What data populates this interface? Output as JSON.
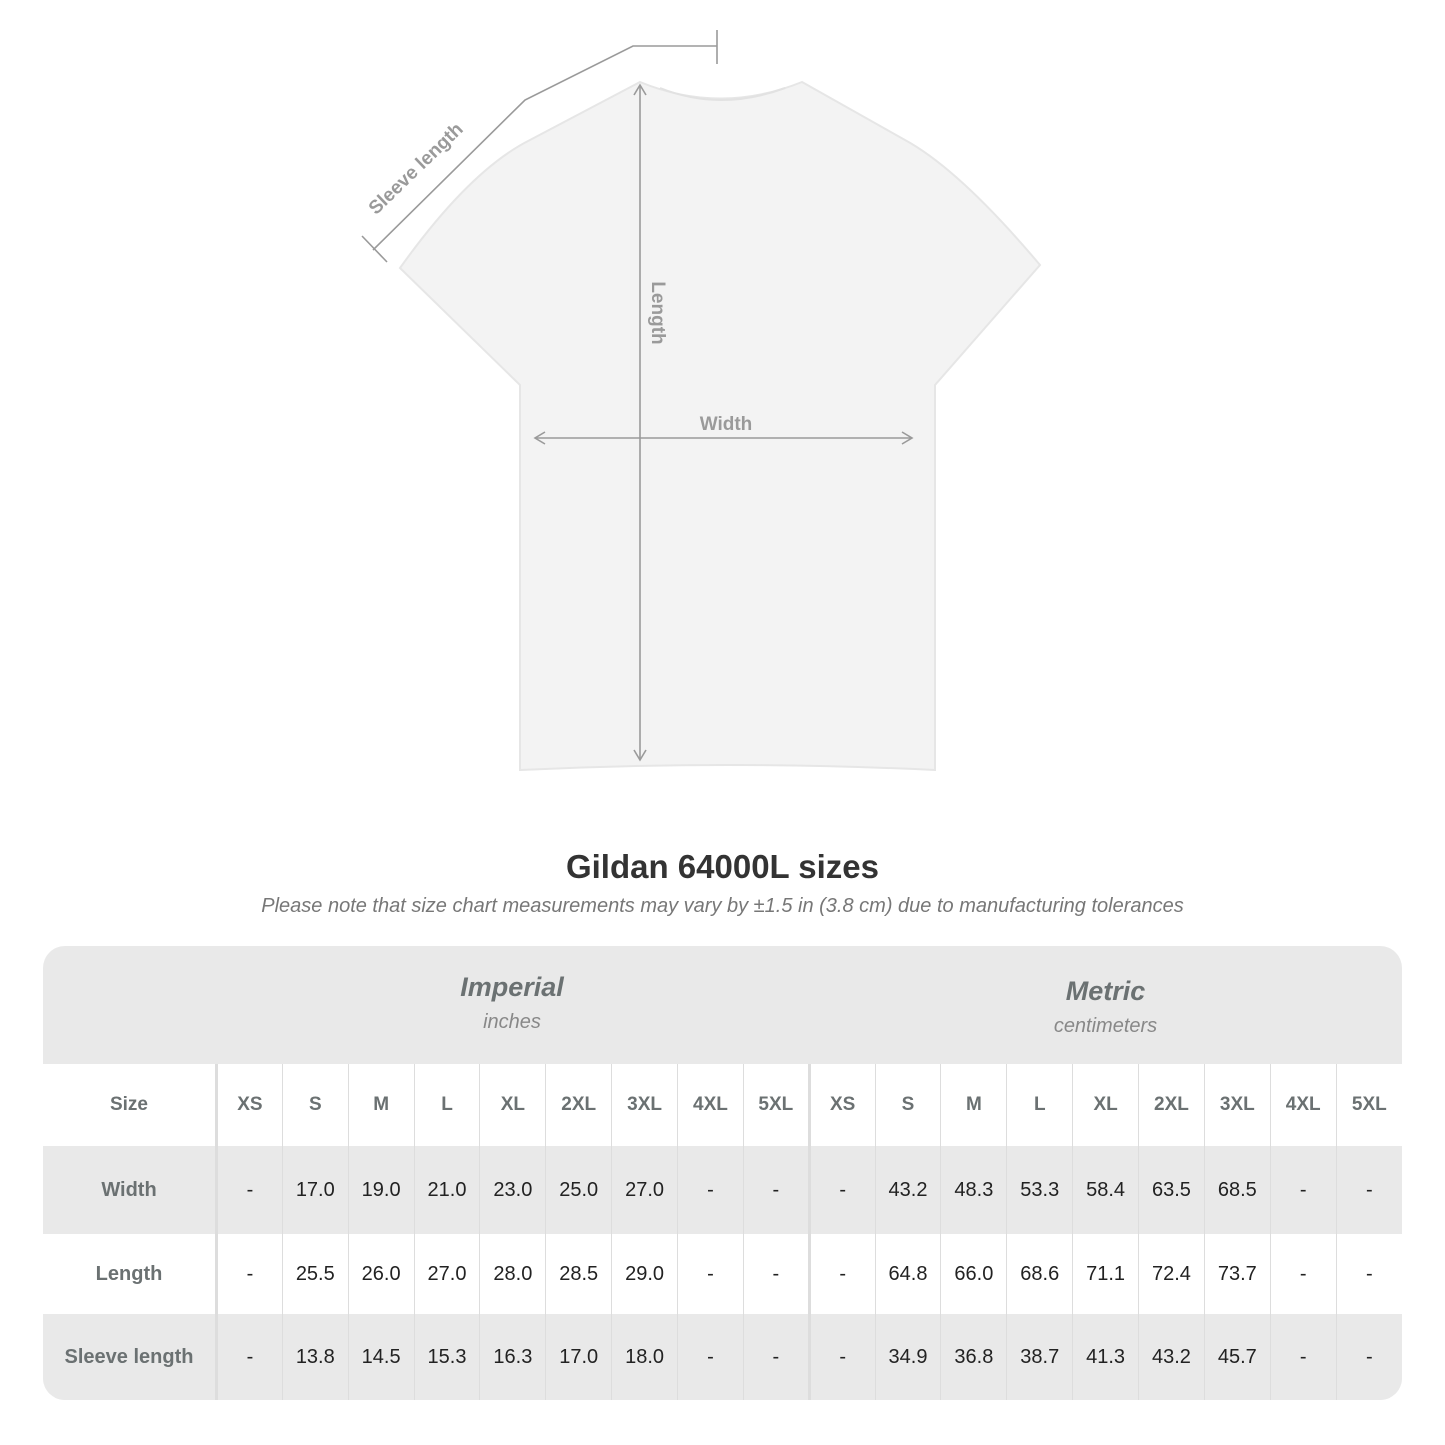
{
  "diagram": {
    "labels": {
      "sleeve": "Sleeve length",
      "length": "Length",
      "width": "Width"
    },
    "colors": {
      "shirt": "#f3f3f3",
      "measure_line": "#9a9a9a"
    }
  },
  "header": {
    "title": "Gildan 64000L sizes",
    "note": "Please note that size chart measurements may vary by ±1.5 in (3.8 cm) due to manufacturing tolerances"
  },
  "table": {
    "imperial": {
      "name": "Imperial",
      "unit": "inches"
    },
    "metric": {
      "name": "Metric",
      "unit": "centimeters"
    },
    "size_label": "Size",
    "sizes": [
      "XS",
      "S",
      "M",
      "L",
      "XL",
      "2XL",
      "3XL",
      "4XL",
      "5XL"
    ],
    "rows": [
      {
        "label": "Width",
        "imperial": [
          "-",
          "17.0",
          "19.0",
          "21.0",
          "23.0",
          "25.0",
          "27.0",
          "-",
          "-"
        ],
        "metric": [
          "-",
          "43.2",
          "48.3",
          "53.3",
          "58.4",
          "63.5",
          "68.5",
          "-",
          "-"
        ]
      },
      {
        "label": "Length",
        "imperial": [
          "-",
          "25.5",
          "26.0",
          "27.0",
          "28.0",
          "28.5",
          "29.0",
          "-",
          "-"
        ],
        "metric": [
          "-",
          "64.8",
          "66.0",
          "68.6",
          "71.1",
          "72.4",
          "73.7",
          "-",
          "-"
        ]
      },
      {
        "label": "Sleeve length",
        "imperial": [
          "-",
          "13.8",
          "14.5",
          "15.3",
          "16.3",
          "17.0",
          "18.0",
          "-",
          "-"
        ],
        "metric": [
          "-",
          "34.9",
          "36.8",
          "38.7",
          "41.3",
          "43.2",
          "45.7",
          "-",
          "-"
        ]
      }
    ]
  }
}
